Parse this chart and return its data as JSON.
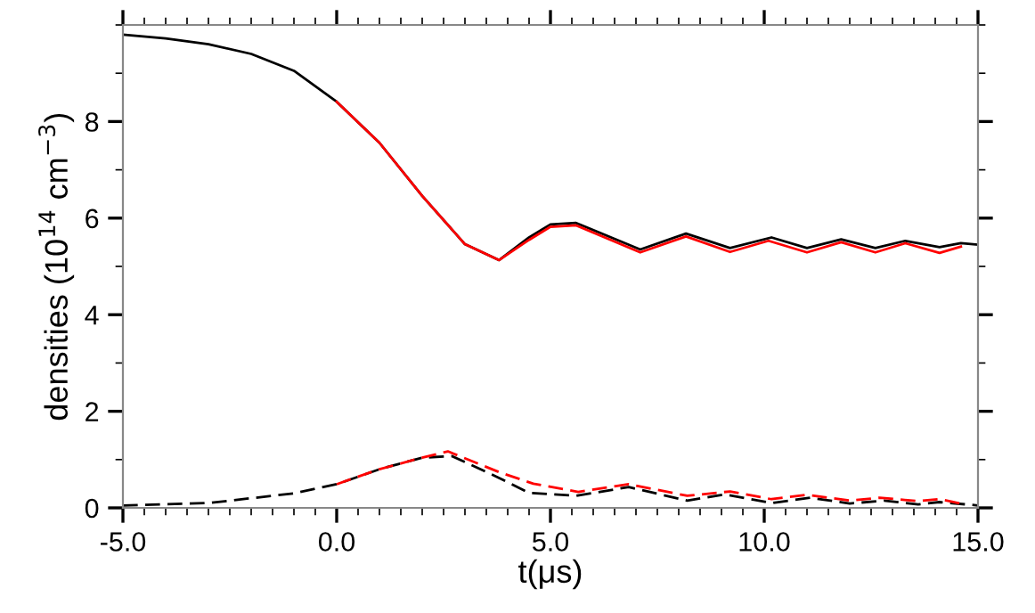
{
  "chart_data": {
    "type": "line",
    "xlabel": "t(μs)",
    "ylabel": "densities (10$^{14}$ cm$^{−3}$)",
    "xlim": [
      -5,
      15
    ],
    "ylim": [
      0,
      10
    ],
    "xticks": [
      {
        "value": -5,
        "label": "-5.0"
      },
      {
        "value": 0,
        "label": "0.0"
      },
      {
        "value": 5,
        "label": "5.0"
      },
      {
        "value": 10,
        "label": "10.0"
      },
      {
        "value": 15,
        "label": "15.0"
      }
    ],
    "yticks": [
      0,
      2,
      4,
      6,
      8
    ],
    "grid": false,
    "legend": false,
    "marker": "none",
    "series": [
      {
        "color": "#000000",
        "line_style": "solid",
        "x": [
          -5,
          -4,
          -3,
          -2,
          -1,
          0,
          1,
          2,
          3,
          3.8,
          4.5,
          5,
          5.6,
          7.1,
          8.17,
          9.2,
          10.17,
          11.0,
          11.8,
          12.6,
          13.3,
          14.1,
          14.6,
          15
        ],
        "values": [
          9.8,
          9.72,
          9.6,
          9.4,
          9.05,
          8.41,
          7.56,
          6.46,
          5.46,
          5.13,
          5.6,
          5.87,
          5.9,
          5.35,
          5.68,
          5.38,
          5.6,
          5.38,
          5.56,
          5.38,
          5.53,
          5.4,
          5.48,
          5.45
        ]
      },
      {
        "color": "#ff0000",
        "line_style": "solid",
        "x": [
          0,
          1,
          2,
          3,
          3.8,
          4.5,
          5,
          5.6,
          7.1,
          8.17,
          9.2,
          10.1,
          11.0,
          11.8,
          12.6,
          13.3,
          14.1,
          14.6
        ],
        "values": [
          8.41,
          7.56,
          6.46,
          5.46,
          5.13,
          5.55,
          5.82,
          5.85,
          5.29,
          5.62,
          5.3,
          5.53,
          5.29,
          5.5,
          5.29,
          5.48,
          5.28,
          5.41
        ]
      },
      {
        "color": "#000000",
        "line_style": "dashed",
        "x": [
          -5,
          -3,
          -1,
          0,
          1,
          2,
          2.7,
          3.8,
          4.5,
          5.6,
          6.83,
          8.2,
          9.07,
          10.17,
          11.08,
          12.0,
          12.8,
          13.6,
          14.1,
          15
        ],
        "values": [
          0.05,
          0.1,
          0.3,
          0.49,
          0.8,
          1.04,
          1.07,
          0.62,
          0.31,
          0.25,
          0.43,
          0.15,
          0.28,
          0.1,
          0.21,
          0.09,
          0.15,
          0.07,
          0.12,
          0.05
        ]
      },
      {
        "color": "#ff0000",
        "line_style": "dashed",
        "x": [
          0,
          1,
          2,
          2.6,
          3.8,
          4.6,
          5.65,
          6.83,
          8.2,
          9.2,
          10.17,
          11.0,
          12.0,
          12.7,
          13.6,
          14.1,
          14.6
        ],
        "values": [
          0.49,
          0.8,
          1.04,
          1.17,
          0.74,
          0.5,
          0.33,
          0.49,
          0.25,
          0.34,
          0.18,
          0.27,
          0.15,
          0.21,
          0.14,
          0.18,
          0.09
        ]
      }
    ]
  }
}
